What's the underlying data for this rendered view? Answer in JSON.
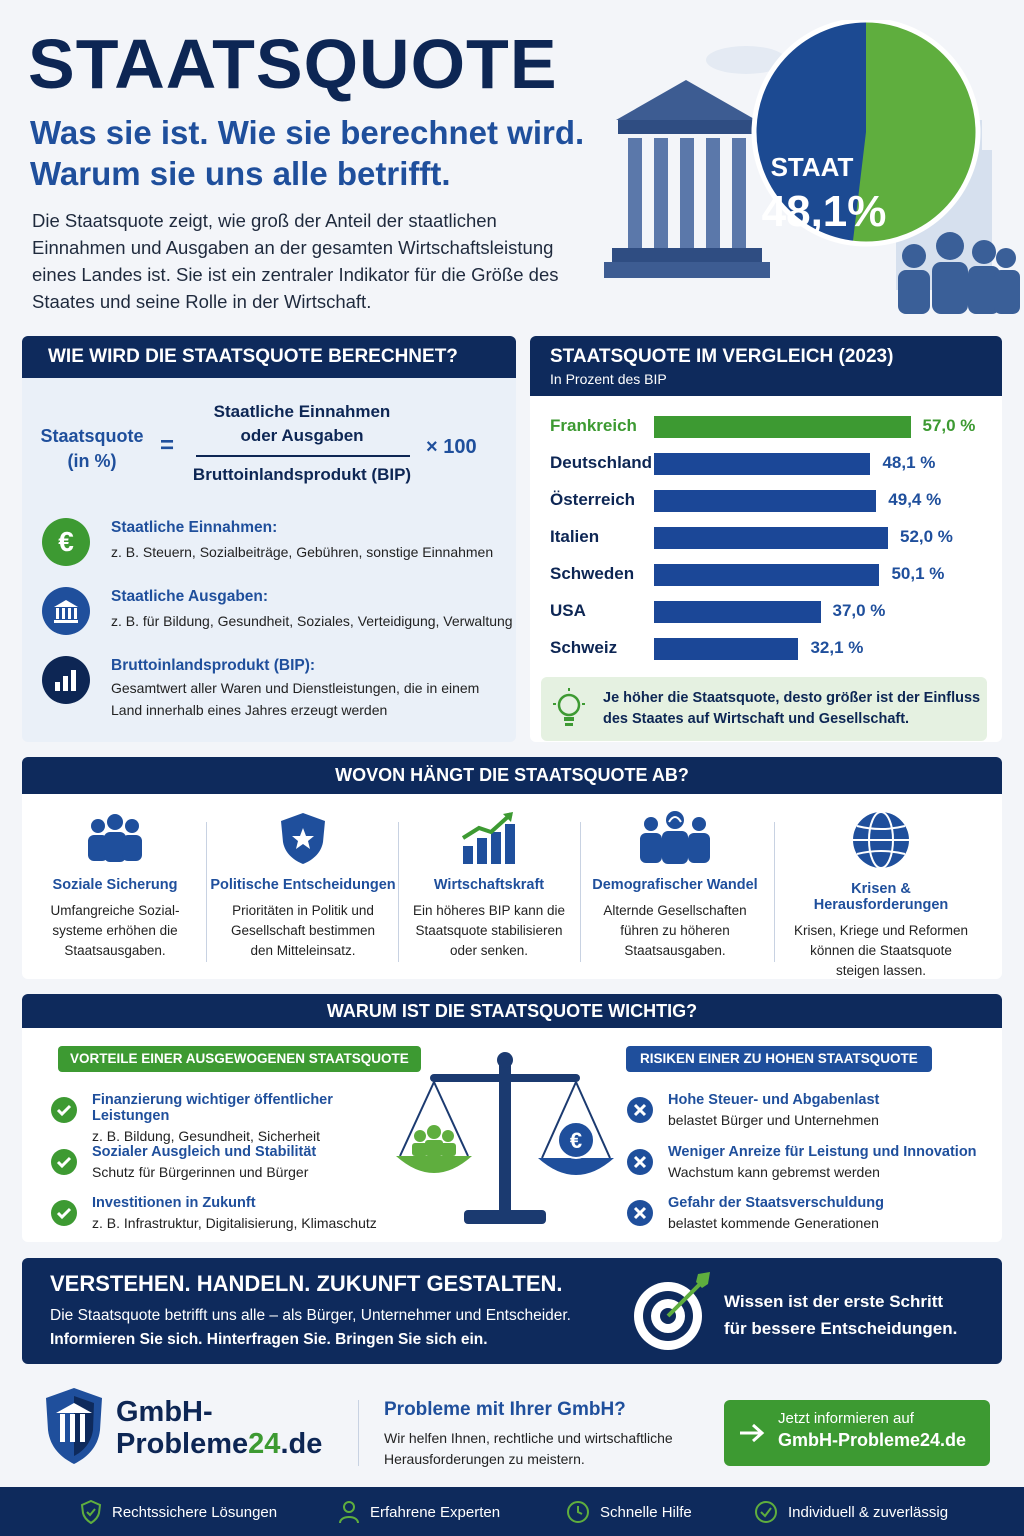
{
  "hero": {
    "title": "STAATSQUOTE",
    "subtitle_line1": "Was sie ist. Wie sie berechnet wird.",
    "subtitle_line2": "Warum sie uns alle betrifft.",
    "intro": "Die Staatsquote zeigt, wie groß der Anteil der staatlichen Einnahmen und Ausgaben an der gesamten Wirtschaftsleistung eines Landes ist. Sie ist ein zentraler Indikator für die Größe des Staates und seine Rolle in der Wirtschaft.",
    "pie_label": "STAAT",
    "pie_value": "48,1%",
    "pie_share": 48.1,
    "colors": {
      "navy": "#0d2654",
      "blue": "#1f4f9c",
      "green": "#3d9a32"
    }
  },
  "formula": {
    "heading": "WIE WIRD DIE STAATSQUOTE BERECHNET?",
    "lhs_line1": "Staatsquote",
    "lhs_line2": "(in %)",
    "equals": "=",
    "numerator_line1": "Staatliche Einnahmen",
    "numerator_line2": "oder Ausgaben",
    "denominator": "Bruttoinlandsprodukt (BIP)",
    "multiplier": "× 100",
    "items": [
      {
        "icon": "euro-icon",
        "title": "Staatliche Einnahmen:",
        "text": "z. B. Steuern, Sozialbeiträge, Gebühren, sonstige Einnahmen"
      },
      {
        "icon": "bank-icon",
        "title": "Staatliche Ausgaben:",
        "text": "z. B. für Bildung, Gesundheit, Soziales, Verteidigung, Verwaltung"
      },
      {
        "icon": "bar-chart-icon",
        "title": "Bruttoinlandsprodukt (BIP):",
        "text_line1": "Gesamtwert aller Waren und Dienstleistungen, die in einem",
        "text_line2": "Land innerhalb eines Jahres erzeugt werden"
      }
    ]
  },
  "comparison": {
    "heading": "STAATSQUOTE IM VERGLEICH (2023)",
    "subheading": "In Prozent des BIP",
    "tip_line1": "Je höher die Staatsquote, desto größer ist der Einfluss",
    "tip_line2": "des Staates auf Wirtschaft und Gesellschaft."
  },
  "chart_data": {
    "type": "bar",
    "orientation": "horizontal",
    "title": "STAATSQUOTE IM VERGLEICH (2023)",
    "subtitle": "In Prozent des BIP",
    "categories": [
      "Frankreich",
      "Deutschland",
      "Österreich",
      "Italien",
      "Schweden",
      "USA",
      "Schweiz"
    ],
    "values": [
      57.0,
      48.1,
      49.4,
      52.0,
      50.1,
      37.0,
      32.1
    ],
    "value_labels": [
      "57,0 %",
      "48,1 %",
      "49,4 %",
      "52,0 %",
      "50,1 %",
      "37,0 %",
      "32,1 %"
    ],
    "highlight": "Frankreich",
    "highlight_color": "#3d9a32",
    "bar_color": "#1b4797"
  },
  "factors": {
    "heading": "WOVON HÄNGT DIE STAATSQUOTE AB?",
    "items": [
      {
        "icon": "people-group-icon",
        "title": "Soziale Sicherung",
        "l1": "Umfangreiche Sozial-",
        "l2": "systeme erhöhen die",
        "l3": "Staatsausgaben."
      },
      {
        "icon": "shield-star-icon",
        "title": "Politische Entscheidungen",
        "l1": "Prioritäten in Politik und",
        "l2": "Gesellschaft bestimmen",
        "l3": "den Mitteleinsatz."
      },
      {
        "icon": "growth-chart-icon",
        "title": "Wirtschaftskraft",
        "l1": "Ein höheres BIP kann die",
        "l2": "Staatsquote stabilisieren",
        "l3": "oder senken."
      },
      {
        "icon": "elderly-people-icon",
        "title": "Demografischer Wandel",
        "l1": "Alternde Gesellschaften",
        "l2": "führen zu höheren",
        "l3": "Staatsausgaben."
      },
      {
        "icon": "globe-icon",
        "title": "Krisen & Herausforderungen",
        "l1": "Krisen, Kriege und Reformen",
        "l2": "können die Staatsquote",
        "l3": "steigen lassen."
      }
    ]
  },
  "importance": {
    "heading": "WARUM IST DIE STAATSQUOTE WICHTIG?",
    "pros_heading": "VORTEILE EINER AUSGEWOGENEN STAATSQUOTE",
    "cons_heading": "RISIKEN EINER ZU HOHEN STAATSQUOTE",
    "pros": [
      {
        "title": "Finanzierung wichtiger öffentlicher Leistungen",
        "text": "z. B. Bildung, Gesundheit, Sicherheit"
      },
      {
        "title": "Sozialer Ausgleich und Stabilität",
        "text": "Schutz für Bürgerinnen und Bürger"
      },
      {
        "title": "Investitionen in Zukunft",
        "text": "z. B. Infrastruktur, Digitalisierung, Klimaschutz"
      }
    ],
    "cons": [
      {
        "title": "Hohe Steuer- und Abgabenlast",
        "text": "belastet Bürger und Unternehmen"
      },
      {
        "title": "Weniger Anreize für Leistung und Innovation",
        "text": "Wachstum kann gebremst werden"
      },
      {
        "title": "Gefahr der Staatsverschuldung",
        "text": "belastet kommende Generationen"
      }
    ]
  },
  "cta_banner": {
    "heading": "VERSTEHEN. HANDELN. ZUKUNFT GESTALTEN.",
    "line1": "Die Staatsquote betrifft uns alle – als Bürger, Unternehmer und Entscheider.",
    "line2": "Informieren Sie sich. Hinterfragen Sie. Bringen Sie sich ein.",
    "right_line1": "Wissen ist der erste Schritt",
    "right_line2": "für bessere Entscheidungen."
  },
  "brand": {
    "logo_line1": "GmbH-",
    "logo_line2_a": "Probleme",
    "logo_line2_b": "24",
    "logo_line2_c": ".de",
    "question": "Probleme mit Ihrer GmbH?",
    "help_line1": "Wir helfen Ihnen, rechtliche und wirtschaftliche",
    "help_line2": "Herausforderungen zu meistern.",
    "button_line1": "Jetzt informieren auf",
    "button_line2": "GmbH-Probleme24.de"
  },
  "footer": {
    "items": [
      {
        "icon": "shield-check-icon",
        "label": "Rechtssichere Lösungen"
      },
      {
        "icon": "person-icon",
        "label": "Erfahrene Experten"
      },
      {
        "icon": "clock-icon",
        "label": "Schnelle Hilfe"
      },
      {
        "icon": "check-circle-icon",
        "label": "Individuell & zuverlässig"
      }
    ]
  }
}
